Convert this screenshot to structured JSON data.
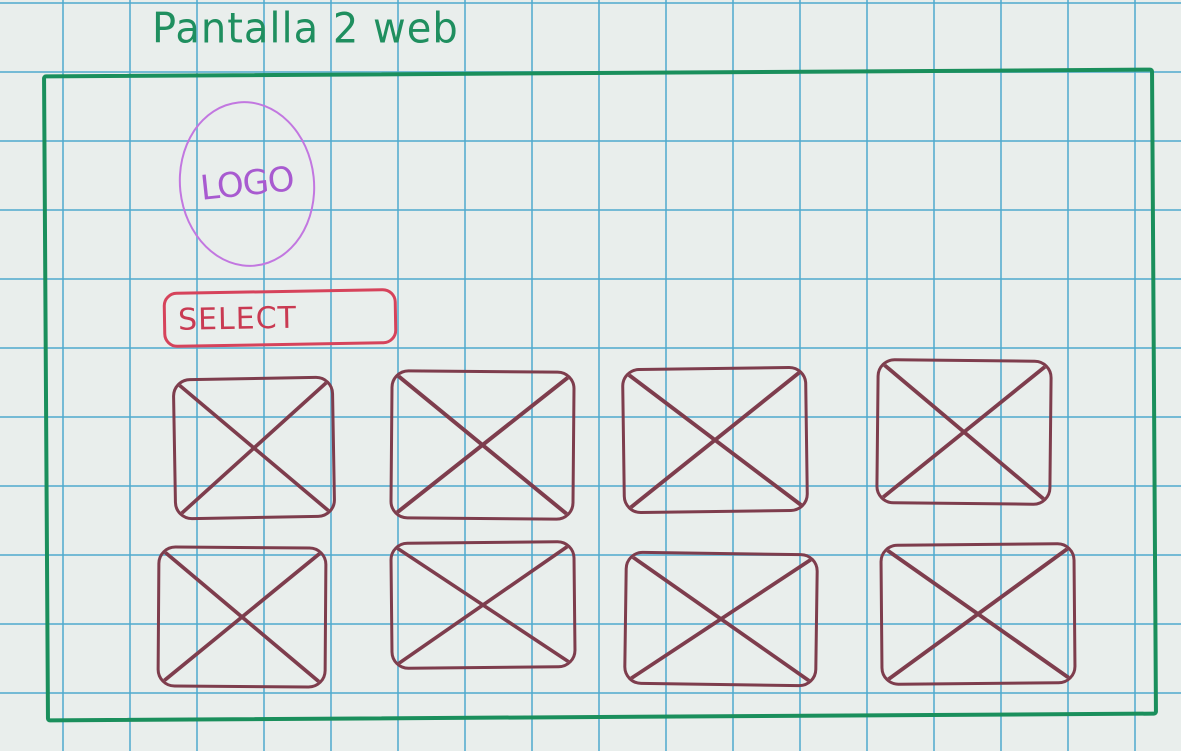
{
  "page": {
    "title": "Pantalla 2 web"
  },
  "header": {
    "logo_text": "LOGO",
    "select_label": "SELECT"
  },
  "grid": {
    "rows": 2,
    "columns": 4,
    "items": [
      {
        "type": "image-placeholder"
      },
      {
        "type": "image-placeholder"
      },
      {
        "type": "image-placeholder"
      },
      {
        "type": "image-placeholder"
      },
      {
        "type": "image-placeholder"
      },
      {
        "type": "image-placeholder"
      },
      {
        "type": "image-placeholder"
      },
      {
        "type": "image-placeholder"
      }
    ]
  },
  "colors": {
    "title_ink": "#1f8f5f",
    "frame_ink": "#1a8f5c",
    "logo_ink": "#a85ad0",
    "select_ink": "#c93a52",
    "placeholder_ink": "#7e3d4d",
    "grid_lines": "#4fa9ce"
  }
}
